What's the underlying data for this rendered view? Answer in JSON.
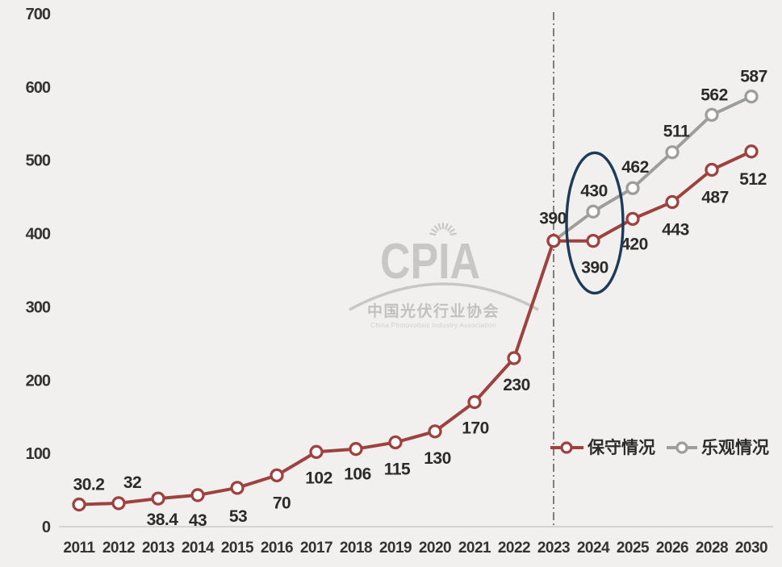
{
  "chart_data": {
    "type": "line",
    "title": "",
    "xlabel": "",
    "ylabel": "",
    "ylim": [
      0,
      700
    ],
    "y_ticks": [
      0,
      100,
      200,
      300,
      400,
      500,
      600,
      700
    ],
    "grid": false,
    "legend_position": "inside-bottom-right",
    "categories": [
      "2011",
      "2012",
      "2013",
      "2014",
      "2015",
      "2016",
      "2017",
      "2018",
      "2019",
      "2020",
      "2021",
      "2022",
      "2023",
      "2024",
      "2025",
      "2026",
      "2028",
      "2030"
    ],
    "series": [
      {
        "name": "保守情况",
        "color": "#9e4240",
        "start_index": 0,
        "values": [
          30.2,
          32,
          38.4,
          43,
          53,
          70,
          102,
          106,
          115,
          130,
          170,
          230,
          390,
          390,
          420,
          443,
          487,
          512
        ],
        "labels": [
          "30.2",
          "32",
          "38.4",
          "43",
          "53",
          "70",
          "102",
          "106",
          "115",
          "130",
          "170",
          "230",
          "390",
          "390",
          "420",
          "443",
          "487",
          "512"
        ],
        "label_offsets": [
          [
            12,
            -25
          ],
          [
            17,
            -26
          ],
          [
            5,
            26
          ],
          [
            0,
            31
          ],
          [
            1,
            35
          ],
          [
            6,
            34
          ],
          [
            3,
            32
          ],
          [
            2,
            31
          ],
          [
            2,
            33
          ],
          [
            3,
            33
          ],
          [
            1,
            32
          ],
          [
            3,
            33
          ],
          [
            -1,
            -28
          ],
          [
            2,
            33
          ],
          [
            2,
            31
          ],
          [
            4,
            34
          ],
          [
            4,
            34
          ],
          [
            2,
            34
          ]
        ]
      },
      {
        "name": "乐观情况",
        "color": "#9d9d9d",
        "start_index": 12,
        "values": [
          390,
          430,
          462,
          511,
          562,
          587
        ],
        "labels": [
          null,
          "430",
          "462",
          "511",
          "562",
          "587"
        ],
        "label_offsets": [
          null,
          [
            1,
            -26
          ],
          [
            3,
            -26
          ],
          [
            5,
            -26
          ],
          [
            3,
            -25
          ],
          [
            3,
            -25
          ]
        ]
      }
    ],
    "forecast_divider_category": "2023",
    "annotation": {
      "category": "2024",
      "encircled_values": [
        390,
        430
      ],
      "color": "#1d3a57"
    },
    "watermark": {
      "logo": "CPIA",
      "org_cn": "中国光伏行业协会",
      "org_en": "China Photovoltaic Industry Association"
    },
    "colors": {
      "background": "#f1f0ee",
      "label_text": "#2b2b2b",
      "tick_text": "#333333",
      "axis_line": "#c9c9c7",
      "divider_line": "#7e7e7e"
    }
  }
}
